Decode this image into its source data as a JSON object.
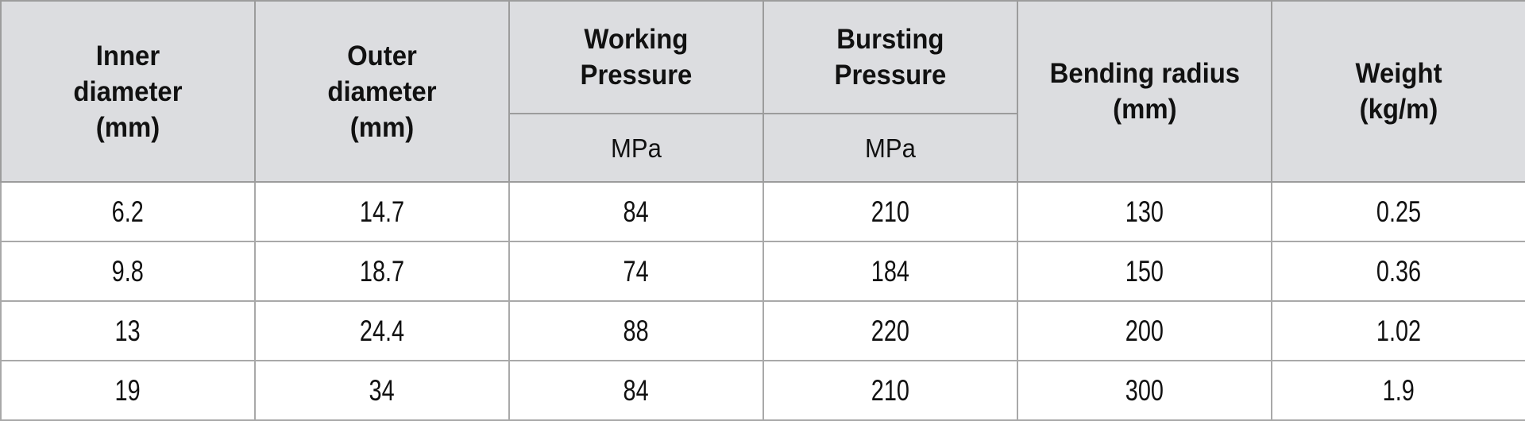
{
  "table": {
    "header": {
      "inner_diameter": "Inner\ndiameter\n(mm)",
      "outer_diameter": "Outer\ndiameter\n(mm)",
      "working_pressure": "Working\nPressure",
      "working_pressure_unit": "MPa",
      "bursting_pressure": "Bursting\nPressure",
      "bursting_pressure_unit": "MPa",
      "bending_radius": "Bending radius\n(mm)",
      "weight": "Weight\n(kg/m)"
    },
    "rows": [
      [
        "6.2",
        "14.7",
        "84",
        "210",
        "130",
        "0.25"
      ],
      [
        "9.8",
        "18.7",
        "74",
        "184",
        "150",
        "0.36"
      ],
      [
        "13",
        "24.4",
        "88",
        "220",
        "200",
        "1.02"
      ],
      [
        "19",
        "34",
        "84",
        "210",
        "300",
        "1.9"
      ]
    ]
  },
  "colors": {
    "header_bg": "#dcdde0",
    "header_border": "#9c9c9c",
    "body_border": "#a9a9a9",
    "body_bg": "#ffffff",
    "text": "#111111"
  }
}
